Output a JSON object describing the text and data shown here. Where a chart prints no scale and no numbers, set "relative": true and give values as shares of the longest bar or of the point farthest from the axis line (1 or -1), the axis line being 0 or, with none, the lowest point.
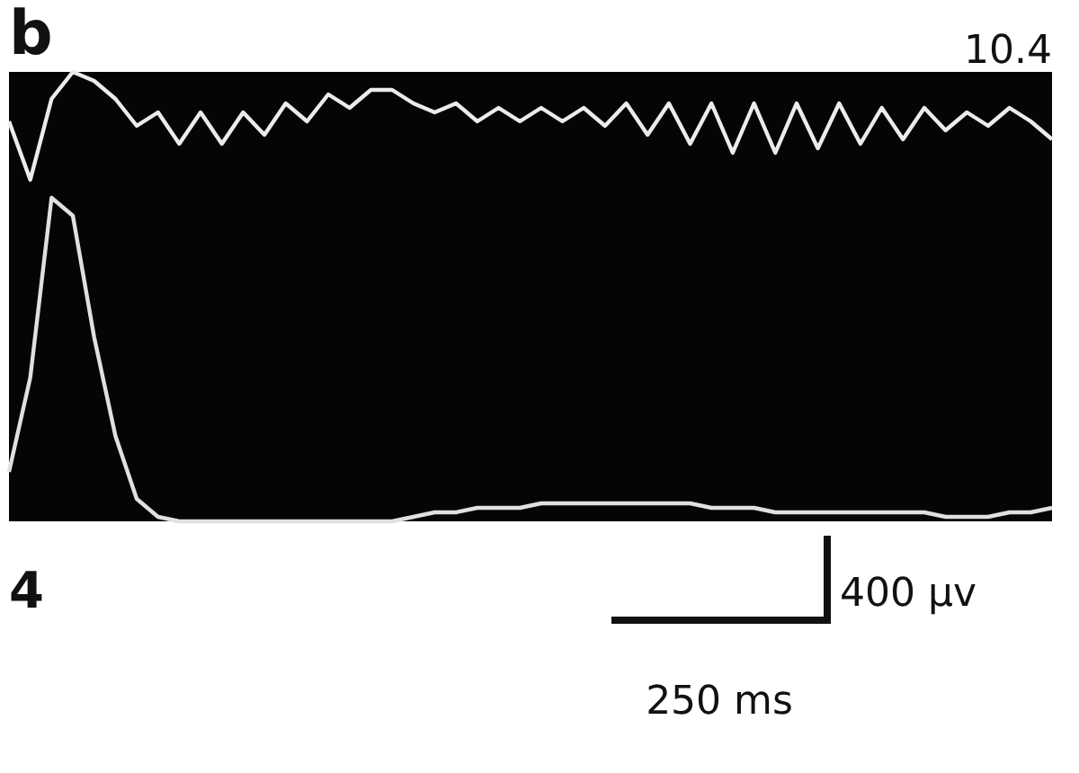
{
  "chart_data": {
    "type": "line",
    "title": "b",
    "relative": true,
    "categories": [
      null,
      null,
      null,
      null,
      null,
      null,
      null,
      null,
      null,
      null,
      null,
      null,
      null,
      null,
      null,
      null,
      null,
      null,
      null,
      null,
      null,
      null,
      null,
      null,
      null,
      null,
      null,
      null,
      null,
      null,
      null,
      null,
      null,
      null,
      null,
      null,
      null,
      null,
      null,
      null,
      null,
      null,
      null,
      null,
      null,
      null,
      null,
      null,
      null,
      null
    ],
    "series": [
      {
        "color": "#ececec",
        "values": [
          0.89,
          0.76,
          0.94,
          1,
          0.98,
          0.94,
          0.88,
          0.91,
          0.84,
          0.91,
          0.84,
          0.91,
          0.86,
          0.93,
          0.89,
          0.95,
          0.92,
          0.96,
          0.96,
          0.93,
          0.91,
          0.93,
          0.89,
          0.92,
          0.89,
          0.92,
          0.89,
          0.92,
          0.88,
          0.93,
          0.86,
          0.93,
          0.84,
          0.93,
          0.82,
          0.93,
          0.82,
          0.93,
          0.83,
          0.93,
          0.84,
          0.92,
          0.85,
          0.92,
          0.87,
          0.91,
          0.88,
          0.92,
          0.89,
          0.85
        ]
      },
      {
        "color": "#e0e0e0",
        "values": [
          0.11,
          0.32,
          0.72,
          0.68,
          0.41,
          0.19,
          0.05,
          0.01,
          0,
          0,
          0,
          0,
          0,
          0,
          0,
          0,
          0,
          0,
          0,
          0.01,
          0.02,
          0.02,
          0.03,
          0.03,
          0.03,
          0.04,
          0.04,
          0.04,
          0.04,
          0.04,
          0.04,
          0.04,
          0.04,
          0.03,
          0.03,
          0.03,
          0.02,
          0.02,
          0.02,
          0.02,
          0.02,
          0.02,
          0.02,
          0.02,
          0.01,
          0.01,
          0.01,
          0.02,
          0.02,
          0.03
        ]
      }
    ],
    "annotations": [
      "10.4",
      "4",
      "400 μv",
      "250 ms"
    ]
  }
}
